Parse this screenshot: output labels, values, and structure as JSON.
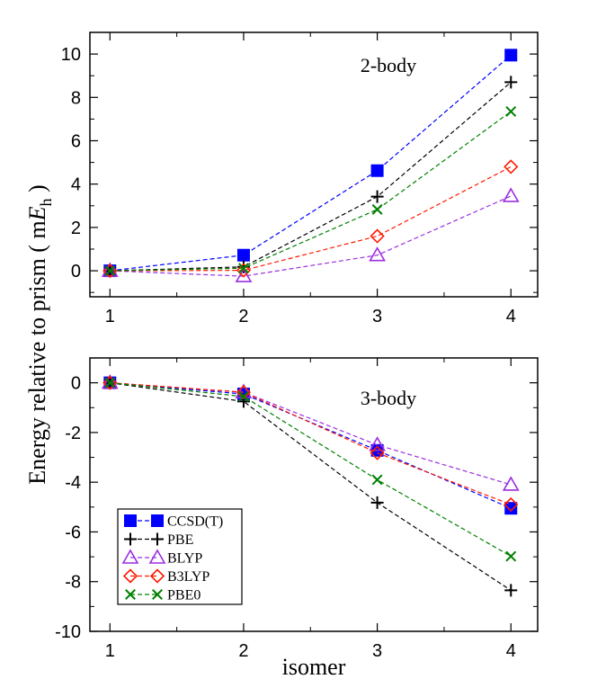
{
  "chart_data": {
    "type": "line",
    "ylabel": "Energy relative to prism ( m",
    "ylabel_italic": "E",
    "ylabel_sub": "h",
    "ylabel_end": " )",
    "xlabel": "isomer",
    "series_styles": [
      {
        "name": "CCSD(T)",
        "color": "#0000ff",
        "marker": "filled-square"
      },
      {
        "name": "PBE",
        "color": "#000000",
        "marker": "plus"
      },
      {
        "name": "BLYP",
        "color": "#9b2ee0",
        "marker": "triangle"
      },
      {
        "name": "B3LYP",
        "color": "#ff1a00",
        "marker": "diamond"
      },
      {
        "name": "PBE0",
        "color": "#008000",
        "marker": "x"
      }
    ],
    "panels": [
      {
        "annotation": "2-body",
        "x": [
          1,
          2,
          3,
          4
        ],
        "x_ticks": [
          1,
          2,
          3,
          4
        ],
        "x_tick_labels": [
          "1",
          "2",
          "3",
          "4"
        ],
        "xlim": [
          0.85,
          4.2
        ],
        "ylim": [
          -1.2,
          11
        ],
        "y_ticks": [
          0,
          2,
          4,
          6,
          8,
          10
        ],
        "y_tick_labels": [
          "0",
          "2",
          "4",
          "6",
          "8",
          "10"
        ],
        "series": [
          {
            "name": "CCSD(T)",
            "values": [
              0.0,
              0.72,
              4.62,
              9.95
            ]
          },
          {
            "name": "PBE",
            "values": [
              0.0,
              0.18,
              3.42,
              8.7
            ]
          },
          {
            "name": "BLYP",
            "values": [
              0.0,
              -0.25,
              0.72,
              3.45
            ]
          },
          {
            "name": "B3LYP",
            "values": [
              0.0,
              0.02,
              1.6,
              4.8
            ]
          },
          {
            "name": "PBE0",
            "values": [
              0.0,
              0.12,
              2.83,
              7.35
            ]
          }
        ]
      },
      {
        "annotation": "3-body",
        "x": [
          1,
          2,
          3,
          4
        ],
        "x_ticks": [
          1,
          2,
          3,
          4
        ],
        "x_tick_labels": [
          "1",
          "2",
          "3",
          "4"
        ],
        "xlim": [
          0.85,
          4.2
        ],
        "ylim": [
          -10,
          1
        ],
        "y_ticks": [
          0,
          -2,
          -4,
          -6,
          -8,
          -10
        ],
        "y_tick_labels": [
          "0",
          "-2",
          "-4",
          "-6",
          "-8",
          "-10"
        ],
        "series": [
          {
            "name": "CCSD(T)",
            "values": [
              0.0,
              -0.45,
              -2.72,
              -5.05
            ]
          },
          {
            "name": "PBE",
            "values": [
              0.0,
              -0.75,
              -4.82,
              -8.35
            ]
          },
          {
            "name": "BLYP",
            "values": [
              0.0,
              -0.38,
              -2.5,
              -4.1
            ]
          },
          {
            "name": "B3LYP",
            "values": [
              0.0,
              -0.38,
              -2.82,
              -4.9
            ]
          },
          {
            "name": "PBE0",
            "values": [
              0.0,
              -0.55,
              -3.9,
              -6.98
            ]
          }
        ]
      }
    ],
    "legend": {
      "position": "lower-left of bottom panel",
      "entries": [
        "CCSD(T)",
        "PBE",
        "BLYP",
        "B3LYP",
        "PBE0"
      ]
    }
  }
}
